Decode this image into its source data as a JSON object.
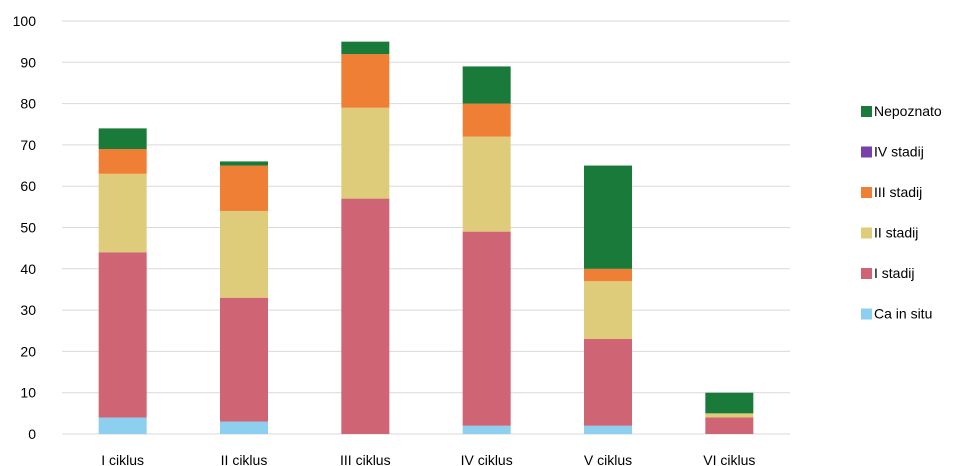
{
  "chart_data": {
    "type": "bar",
    "stacked": true,
    "categories": [
      "I ciklus",
      "II ciklus",
      "III ciklus",
      "IV ciklus",
      "V ciklus",
      "VI ciklus"
    ],
    "series": [
      {
        "name": "Ca in situ",
        "color": "#8ccfee",
        "values": [
          4,
          3,
          0,
          2,
          2,
          0
        ]
      },
      {
        "name": "I stadij",
        "color": "#cf6475",
        "values": [
          40,
          30,
          57,
          47,
          21,
          4
        ]
      },
      {
        "name": "II stadij",
        "color": "#dfcc7a",
        "values": [
          19,
          21,
          22,
          23,
          14,
          1
        ]
      },
      {
        "name": "III stadij",
        "color": "#ef7f35",
        "values": [
          6,
          11,
          13,
          8,
          3,
          0
        ]
      },
      {
        "name": "IV stadij",
        "color": "#7a3fa8",
        "values": [
          0,
          0,
          0,
          0,
          0,
          0
        ]
      },
      {
        "name": "Nepoznato",
        "color": "#1a7a3a",
        "values": [
          5,
          1,
          3,
          9,
          25,
          5
        ]
      }
    ],
    "ylim": [
      0,
      100
    ],
    "yticks": [
      "0",
      "10",
      "20",
      "30",
      "40",
      "50",
      "60",
      "70",
      "80",
      "90",
      "100"
    ],
    "grid": true,
    "legend_position": "right",
    "title": "",
    "xlabel": "",
    "ylabel": ""
  }
}
